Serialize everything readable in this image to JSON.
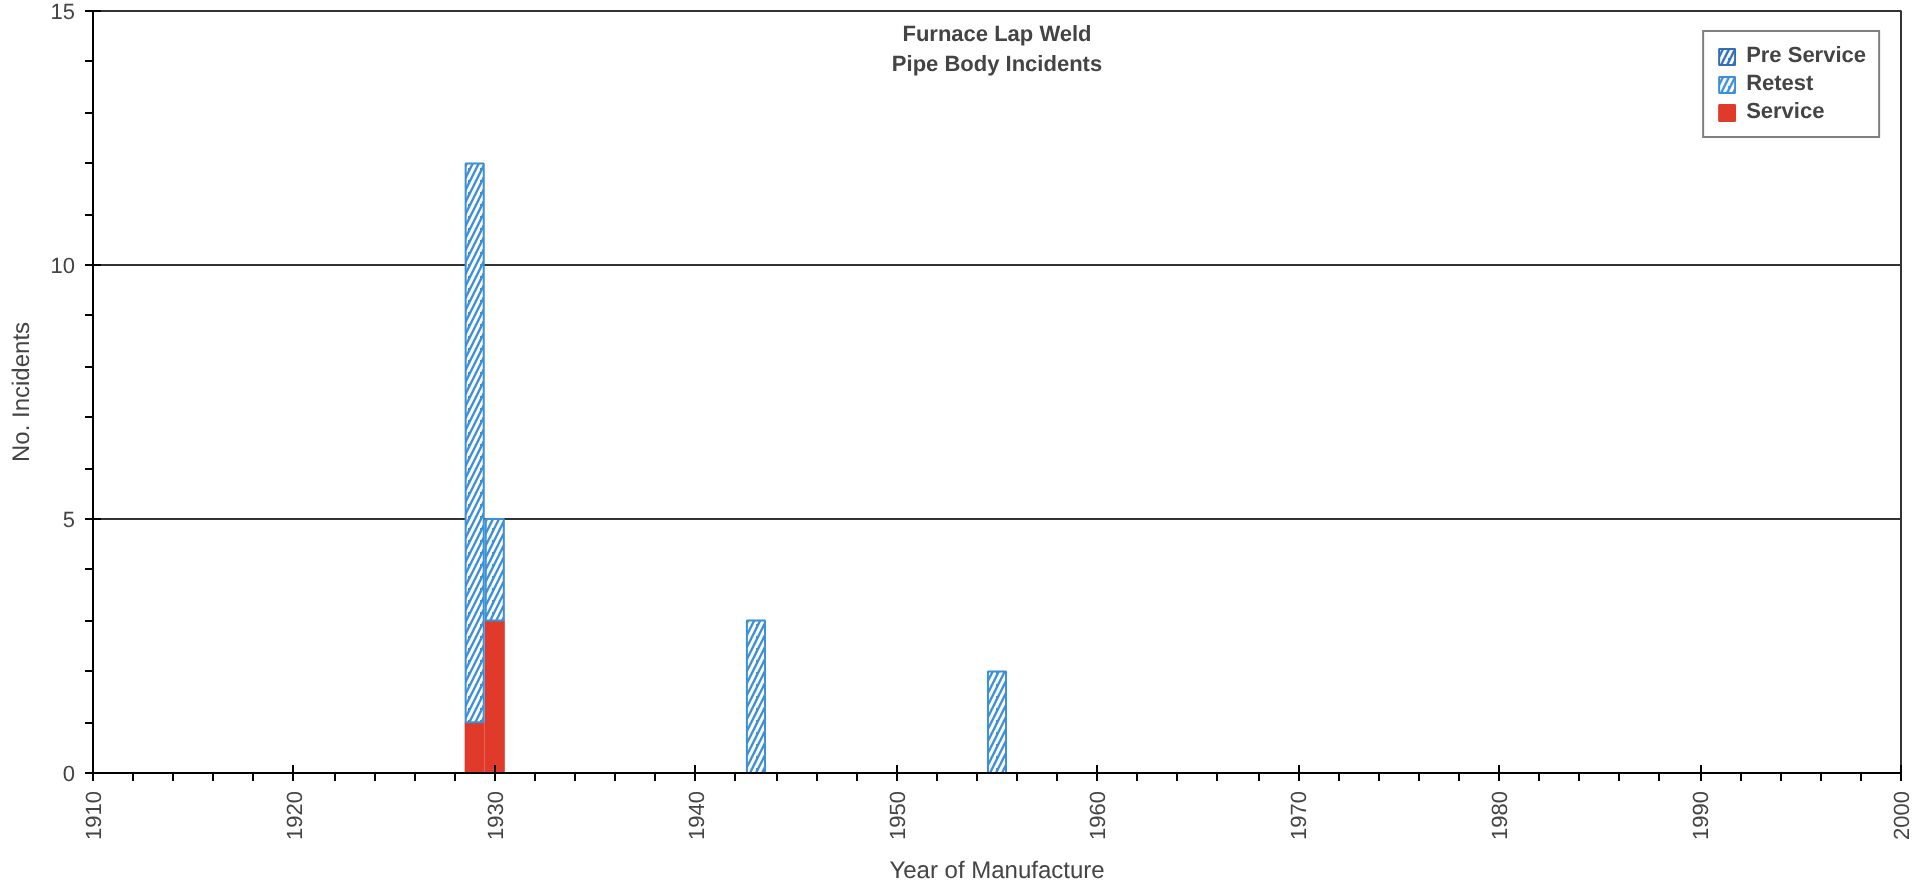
{
  "chart_data": {
    "type": "bar",
    "stacked": true,
    "title": "Furnace Lap Weld\nPipe Body Incidents",
    "xlabel": "Year of Manufacture",
    "ylabel": "No. Incidents",
    "x": [
      1929,
      1930,
      1943,
      1955
    ],
    "series": [
      {
        "name": "Service",
        "color": "#e03a2a",
        "values": [
          1,
          3,
          null,
          null
        ]
      },
      {
        "name": "Retest",
        "color": "#3d8fd6",
        "values": [
          11,
          2,
          3,
          2
        ]
      },
      {
        "name": "Pre Service",
        "color": "#2f6fb8",
        "values": [
          null,
          null,
          null,
          null
        ]
      }
    ],
    "xlim": [
      1910,
      2000
    ],
    "xticks": [
      1910,
      1920,
      1930,
      1940,
      1950,
      1960,
      1970,
      1980,
      1990,
      2000
    ],
    "ylim": [
      0,
      15
    ],
    "yticks": [
      0,
      5,
      10,
      15
    ],
    "grid": "y",
    "legend": "top right"
  }
}
